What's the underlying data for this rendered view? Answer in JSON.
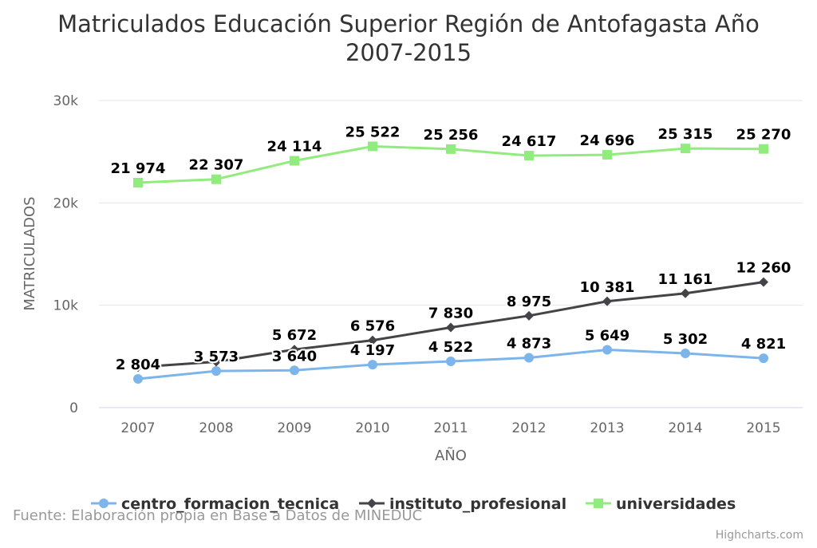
{
  "chart_data": {
    "type": "line",
    "title": "Matriculados Educación Superior Región de Antofagasta Año 2007-2015",
    "title_lines": [
      "Matriculados Educación Superior Región de Antofagasta Año",
      "2007-2015"
    ],
    "xlabel": "AÑO",
    "ylabel": "MATRICULADOS",
    "categories": [
      "2007",
      "2008",
      "2009",
      "2010",
      "2011",
      "2012",
      "2013",
      "2014",
      "2015"
    ],
    "y_ticks": [
      0,
      10000,
      20000,
      30000
    ],
    "y_tick_labels": [
      "0",
      "10k",
      "20k",
      "30k"
    ],
    "ylim": [
      0,
      30000
    ],
    "grid": "horizontal",
    "legend": "bottom",
    "series": [
      {
        "name": "centro_formacion_tecnica",
        "color": "#7cb5ec",
        "marker": "circle",
        "values": [
          2804,
          3573,
          3640,
          4197,
          4522,
          4873,
          5649,
          5302,
          4821
        ],
        "labels": [
          "2 804",
          "3 573",
          "3 640",
          "4 197",
          "4 522",
          "4 873",
          "5 649",
          "5 302",
          "4 821"
        ]
      },
      {
        "name": "instituto_profesional",
        "color": "#434348",
        "marker": "diamond",
        "values": [
          3950,
          4480,
          5672,
          6576,
          7830,
          8975,
          10381,
          11161,
          12260
        ],
        "labels": [
          null,
          null,
          "5 672",
          "6 576",
          "7 830",
          "8 975",
          "10 381",
          "11 161",
          "12 260"
        ]
      },
      {
        "name": "universidades",
        "color": "#90ed7d",
        "marker": "square",
        "values": [
          21974,
          22307,
          24114,
          25522,
          25256,
          24617,
          24696,
          25315,
          25270
        ],
        "labels": [
          "21 974",
          "22 307",
          "24 114",
          "25 522",
          "25 256",
          "24 617",
          "24 696",
          "25 315",
          "25 270"
        ]
      }
    ]
  },
  "source_note": "Fuente: Elaboración propia en Base a Datos de MINEDUC",
  "credits": "Highcharts.com"
}
